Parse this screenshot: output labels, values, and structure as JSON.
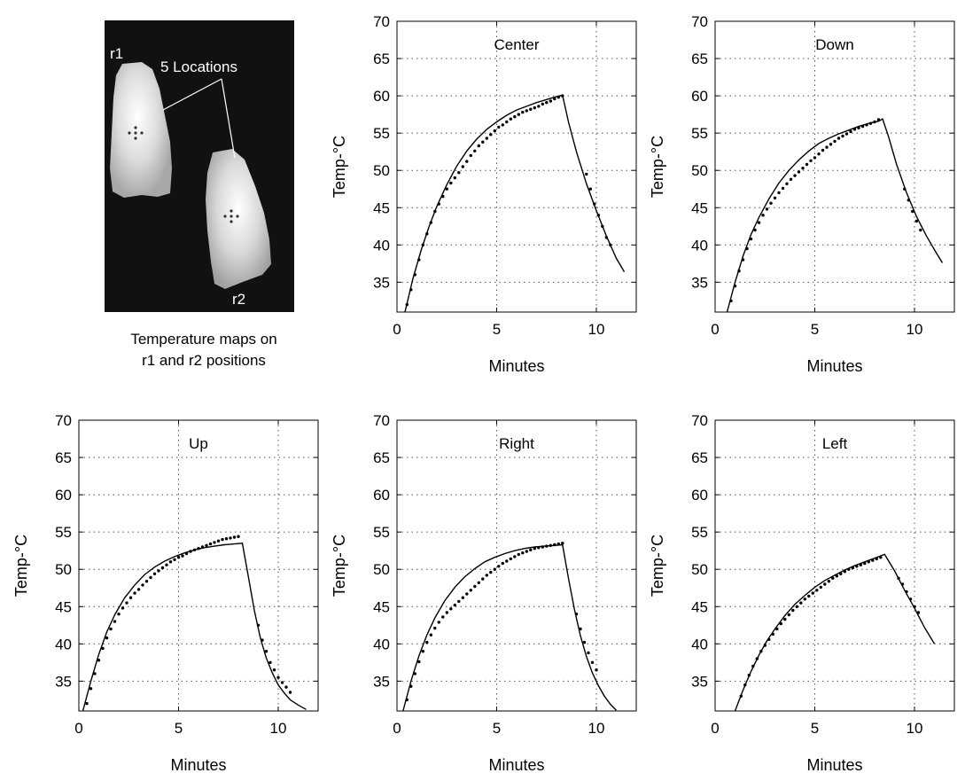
{
  "thermal_image": {
    "labels": [
      "r1",
      "5 Locations",
      "r2"
    ],
    "caption_lines": [
      "Temperature maps on",
      "r1 and r2 positions"
    ]
  },
  "chart_data": [
    {
      "type": "line",
      "title": "Center",
      "xlabel": "Minutes",
      "ylabel": "Temp-°C",
      "xlim": [
        0,
        12
      ],
      "ylim": [
        31,
        70
      ],
      "xticks": [
        0,
        5,
        10
      ],
      "yticks": [
        35,
        40,
        45,
        50,
        55,
        60,
        65,
        70
      ],
      "grid": true,
      "series": [
        {
          "kind": "fit_line",
          "x": [
            0.4,
            0.8,
            1.2,
            1.6,
            2,
            2.5,
            3,
            3.5,
            4,
            4.5,
            5,
            5.5,
            6,
            6.5,
            7,
            7.5,
            8,
            8.3,
            8.6,
            9,
            9.5,
            10,
            10.5,
            11,
            11.4
          ],
          "y": [
            31,
            35.5,
            39.2,
            42.4,
            45.2,
            48.1,
            50.6,
            52.6,
            54.2,
            55.5,
            56.5,
            57.4,
            58.1,
            58.6,
            59.1,
            59.5,
            59.9,
            60.1,
            56.5,
            52.5,
            48.2,
            44.6,
            41.2,
            38.2,
            36.4
          ]
        },
        {
          "kind": "measured_points",
          "x": [
            0.5,
            0.7,
            0.9,
            1.1,
            1.3,
            1.5,
            1.7,
            1.9,
            2.1,
            2.3,
            2.5,
            2.7,
            2.9,
            3.1,
            3.3,
            3.5,
            3.7,
            3.9,
            4.1,
            4.3,
            4.5,
            4.7,
            4.9,
            5.1,
            5.3,
            5.5,
            5.7,
            5.9,
            6.1,
            6.3,
            6.5,
            6.7,
            6.9,
            7.1,
            7.3,
            7.5,
            7.7,
            7.9,
            8.1,
            8.3,
            9.5,
            9.7,
            9.9,
            10.1,
            10.3,
            10.5,
            10.7
          ],
          "y": [
            32,
            34,
            36,
            38,
            40,
            41.5,
            43,
            44.5,
            45.5,
            46.5,
            47.5,
            48.3,
            49,
            49.7,
            50.5,
            51.2,
            52,
            52.6,
            53.3,
            53.8,
            54.3,
            54.8,
            55.3,
            55.8,
            56.1,
            56.5,
            56.9,
            57.2,
            57.5,
            57.8,
            58,
            58.2,
            58.4,
            58.6,
            58.9,
            59.1,
            59.3,
            59.6,
            59.8,
            60,
            49.5,
            47.5,
            45.5,
            44,
            42.5,
            41,
            40
          ]
        }
      ]
    },
    {
      "type": "line",
      "title": "Down",
      "xlabel": "Minutes",
      "ylabel": "Temp-°C",
      "xlim": [
        0,
        12
      ],
      "ylim": [
        31,
        70
      ],
      "xticks": [
        0,
        5,
        10
      ],
      "yticks": [
        35,
        40,
        45,
        50,
        55,
        60,
        65,
        70
      ],
      "grid": true,
      "series": [
        {
          "kind": "fit_line",
          "x": [
            0.6,
            1,
            1.4,
            1.8,
            2.2,
            2.7,
            3.2,
            3.7,
            4.2,
            4.7,
            5.2,
            5.7,
            6.2,
            6.7,
            7.2,
            7.7,
            8.2,
            8.4,
            8.7,
            9.1,
            9.6,
            10.1,
            10.6,
            11.1,
            11.4
          ],
          "y": [
            31,
            35,
            38.5,
            41.4,
            43.7,
            46.2,
            48.3,
            50,
            51.4,
            52.6,
            53.6,
            54.3,
            54.9,
            55.4,
            55.9,
            56.3,
            56.6,
            56.9,
            54.5,
            50.8,
            47,
            43.8,
            41.2,
            38.9,
            37.6
          ]
        },
        {
          "kind": "measured_points",
          "x": [
            0.8,
            1,
            1.2,
            1.4,
            1.6,
            1.8,
            2,
            2.2,
            2.4,
            2.6,
            2.8,
            3,
            3.2,
            3.4,
            3.6,
            3.8,
            4,
            4.2,
            4.4,
            4.6,
            4.8,
            5,
            5.2,
            5.4,
            5.6,
            5.8,
            6,
            6.2,
            6.4,
            6.6,
            6.8,
            7,
            7.2,
            7.4,
            7.6,
            7.8,
            8,
            8.2,
            9.5,
            9.7,
            9.9,
            10.1,
            10.3
          ],
          "y": [
            32.5,
            34.5,
            36.5,
            38,
            39.5,
            40.8,
            42,
            43,
            44,
            44.8,
            45.6,
            46.3,
            47,
            47.6,
            48.2,
            48.8,
            49.3,
            49.8,
            50.3,
            50.8,
            51.3,
            51.7,
            52.2,
            52.7,
            53.1,
            53.5,
            53.9,
            54.3,
            54.6,
            54.9,
            55.2,
            55.5,
            55.7,
            55.9,
            56.1,
            56.3,
            56.5,
            56.8,
            47.5,
            46,
            44.5,
            43.2,
            42
          ]
        }
      ]
    },
    {
      "type": "line",
      "title": "Up",
      "xlabel": "Minutes",
      "ylabel": "Temp-°C",
      "xlim": [
        0,
        12
      ],
      "ylim": [
        31,
        70
      ],
      "xticks": [
        0,
        5,
        10
      ],
      "yticks": [
        35,
        40,
        45,
        50,
        55,
        60,
        65,
        70
      ],
      "grid": true,
      "series": [
        {
          "kind": "fit_line",
          "x": [
            0.2,
            0.6,
            1,
            1.4,
            1.8,
            2.3,
            2.8,
            3.3,
            3.8,
            4.3,
            4.8,
            5.3,
            5.8,
            6.3,
            6.8,
            7.3,
            7.8,
            8.2,
            8.5,
            8.8,
            9.1,
            9.4,
            9.7,
            10,
            10.3,
            10.6,
            11,
            11.4
          ],
          "y": [
            31,
            35,
            38.6,
            41.6,
            43.9,
            46.2,
            47.9,
            49.3,
            50.3,
            51.1,
            51.7,
            52.2,
            52.6,
            52.9,
            53.1,
            53.3,
            53.4,
            53.5,
            49,
            44.5,
            40.8,
            38.1,
            36.1,
            34.5,
            33.4,
            32.5,
            31.8,
            31.2
          ]
        },
        {
          "kind": "measured_points",
          "x": [
            0.4,
            0.6,
            0.8,
            1,
            1.2,
            1.4,
            1.6,
            1.8,
            2,
            2.2,
            2.4,
            2.6,
            2.8,
            3,
            3.2,
            3.4,
            3.6,
            3.8,
            4,
            4.2,
            4.4,
            4.6,
            4.8,
            5,
            5.2,
            5.4,
            5.6,
            5.8,
            6,
            6.2,
            6.4,
            6.6,
            6.8,
            7,
            7.2,
            7.4,
            7.6,
            7.8,
            8,
            9,
            9.2,
            9.4,
            9.6,
            9.8,
            10,
            10.2,
            10.4,
            10.6
          ],
          "y": [
            32,
            34,
            36,
            37.8,
            39.4,
            40.8,
            42,
            43,
            44,
            44.8,
            45.5,
            46.2,
            46.8,
            47.3,
            47.9,
            48.4,
            48.9,
            49.4,
            49.8,
            50.2,
            50.6,
            51,
            51.3,
            51.6,
            51.8,
            52.1,
            52.4,
            52.6,
            52.8,
            53,
            53.2,
            53.4,
            53.6,
            53.8,
            54,
            54.1,
            54.2,
            54.3,
            54.4,
            42.5,
            40.5,
            39,
            37.5,
            36.5,
            35.5,
            34.8,
            34.2,
            33.5
          ]
        }
      ]
    },
    {
      "type": "line",
      "title": "Right",
      "xlabel": "Minutes",
      "ylabel": "Temp-°C",
      "xlim": [
        0,
        12
      ],
      "ylim": [
        31,
        70
      ],
      "xticks": [
        0,
        5,
        10
      ],
      "yticks": [
        35,
        40,
        45,
        50,
        55,
        60,
        65,
        70
      ],
      "grid": true,
      "series": [
        {
          "kind": "fit_line",
          "x": [
            0.3,
            0.7,
            1.1,
            1.5,
            1.9,
            2.4,
            2.9,
            3.4,
            3.9,
            4.4,
            4.9,
            5.4,
            5.9,
            6.4,
            6.9,
            7.4,
            7.9,
            8.3,
            8.6,
            8.9,
            9.2,
            9.5,
            9.8,
            10.1,
            10.4,
            10.7,
            11
          ],
          "y": [
            31,
            35,
            38.4,
            41.2,
            43.5,
            45.8,
            47.6,
            49,
            50.1,
            51,
            51.6,
            52.1,
            52.5,
            52.8,
            53,
            53.1,
            53.2,
            53.3,
            48.8,
            44.6,
            41.1,
            38.3,
            36.1,
            34.4,
            33,
            31.9,
            31.1
          ]
        },
        {
          "kind": "measured_points",
          "x": [
            0.5,
            0.7,
            0.9,
            1.1,
            1.3,
            1.5,
            1.7,
            1.9,
            2.1,
            2.3,
            2.5,
            2.7,
            2.9,
            3.1,
            3.3,
            3.5,
            3.7,
            3.9,
            4.1,
            4.3,
            4.5,
            4.7,
            4.9,
            5.1,
            5.3,
            5.5,
            5.7,
            5.9,
            6.1,
            6.3,
            6.5,
            6.7,
            6.9,
            7.1,
            7.3,
            7.5,
            7.7,
            7.9,
            8.1,
            8.3,
            9,
            9.2,
            9.4,
            9.6,
            9.8,
            10
          ],
          "y": [
            32.5,
            34.3,
            36,
            37.6,
            39,
            40.2,
            41.2,
            42.1,
            42.9,
            43.6,
            44.2,
            44.7,
            45.2,
            45.7,
            46.2,
            46.7,
            47.2,
            47.7,
            48.2,
            48.7,
            49.2,
            49.6,
            50,
            50.4,
            50.8,
            51.1,
            51.4,
            51.7,
            52,
            52.2,
            52.4,
            52.6,
            52.8,
            52.9,
            53,
            53.1,
            53.2,
            53.3,
            53.4,
            53.5,
            44,
            42,
            40.2,
            38.8,
            37.5,
            36.5
          ]
        }
      ]
    },
    {
      "type": "line",
      "title": "Left",
      "xlabel": "Minutes",
      "ylabel": "Temp-°C",
      "xlim": [
        0,
        12
      ],
      "ylim": [
        31,
        70
      ],
      "xticks": [
        0,
        5,
        10
      ],
      "yticks": [
        35,
        40,
        45,
        50,
        55,
        60,
        65,
        70
      ],
      "grid": true,
      "series": [
        {
          "kind": "fit_line",
          "x": [
            1,
            1.4,
            1.8,
            2.2,
            2.6,
            3,
            3.5,
            4,
            4.5,
            5,
            5.5,
            6,
            6.5,
            7,
            7.5,
            8,
            8.5,
            9,
            9.5,
            10,
            10.5,
            11
          ],
          "y": [
            31,
            33.8,
            36.3,
            38.5,
            40.4,
            42,
            43.8,
            45.3,
            46.5,
            47.6,
            48.5,
            49.2,
            49.9,
            50.5,
            51,
            51.5,
            52,
            49.8,
            47.2,
            44.8,
            42.2,
            40
          ]
        },
        {
          "kind": "measured_points",
          "x": [
            1.3,
            1.5,
            1.7,
            1.9,
            2.1,
            2.3,
            2.5,
            2.7,
            2.9,
            3.1,
            3.3,
            3.5,
            3.7,
            3.9,
            4.1,
            4.3,
            4.5,
            4.7,
            4.9,
            5.1,
            5.3,
            5.5,
            5.7,
            5.9,
            6.1,
            6.3,
            6.5,
            6.7,
            6.9,
            7.1,
            7.3,
            7.5,
            7.7,
            7.9,
            8.1,
            8.3,
            9.2,
            9.4,
            9.6,
            9.8,
            10,
            10.2
          ],
          "y": [
            33,
            34.5,
            35.8,
            37,
            38,
            39,
            39.8,
            40.6,
            41.3,
            42,
            42.7,
            43.3,
            43.9,
            44.5,
            45,
            45.5,
            46,
            46.4,
            46.8,
            47.2,
            47.6,
            48,
            48.4,
            48.8,
            49.1,
            49.4,
            49.7,
            50,
            50.2,
            50.4,
            50.6,
            50.8,
            51,
            51.2,
            51.4,
            51.6,
            48.8,
            48,
            47,
            46,
            45,
            44.2
          ]
        }
      ]
    }
  ]
}
